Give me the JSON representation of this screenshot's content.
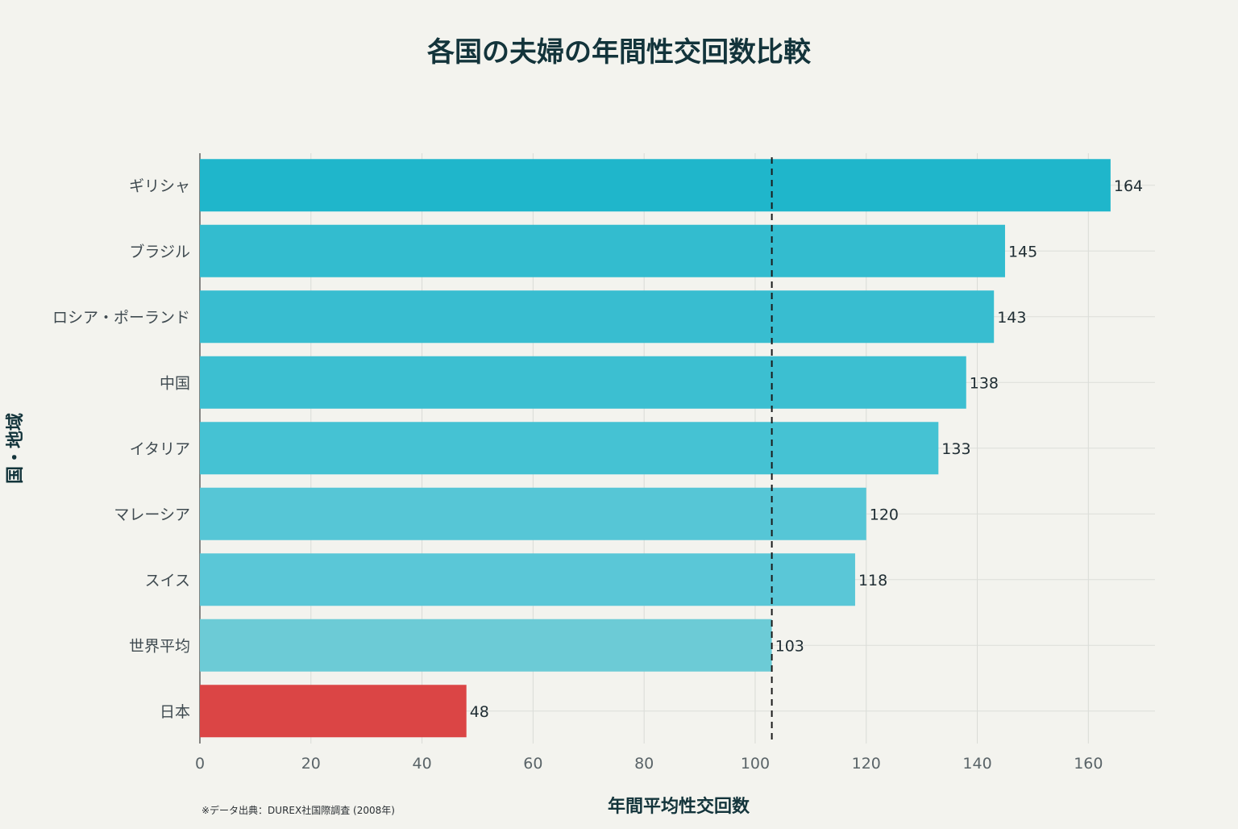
{
  "chart_data": {
    "type": "bar",
    "orientation": "horizontal",
    "title": "各国の夫婦の年間性交回数比較",
    "xlabel": "年間平均性交回数",
    "ylabel": "国・地域",
    "categories": [
      "ギリシャ",
      "ブラジル",
      "ロシア・ポーランド",
      "中国",
      "イタリア",
      "マレーシア",
      "スイス",
      "世界平均",
      "日本"
    ],
    "values": [
      164,
      145,
      143,
      138,
      133,
      120,
      118,
      103,
      48
    ],
    "bar_colors": [
      "#1fb6cb",
      "#33bccf",
      "#38bdd0",
      "#3cbfd1",
      "#45c2d3",
      "#56c6d6",
      "#5ac7d7",
      "#6ccbd6",
      "#db4545"
    ],
    "xlim": [
      0,
      172
    ],
    "xticks": [
      0,
      20,
      40,
      60,
      80,
      100,
      120,
      140,
      160
    ],
    "reference_line": {
      "value": 103,
      "style": "dashed",
      "color": "#1a1a1a"
    },
    "grid": true,
    "note": "※データ出典：DUREX社国際調査 (2008年)"
  }
}
